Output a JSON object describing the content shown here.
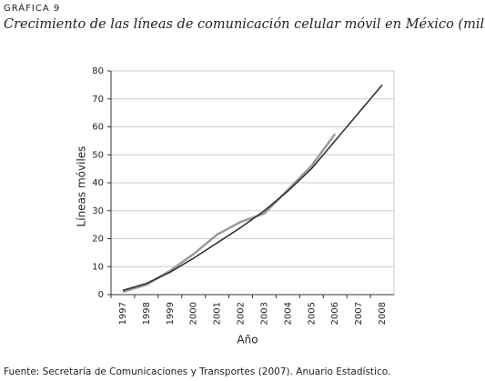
{
  "chart_data": {
    "type": "line",
    "label": "GRÁFICA 9",
    "title": "Crecimiento de las líneas de comunicación celular móvil en México (millones)",
    "x_label": "Año",
    "y_label": "Líneas móviles",
    "source": "Fuente: Secretaría de Comunicaciones y Transportes (2007). Anuario Estadístico.",
    "categories": [
      "1997",
      "1998",
      "1999",
      "2000",
      "2001",
      "2002",
      "2003",
      "2004",
      "2005",
      "2006",
      "2007",
      "2008"
    ],
    "series": [
      {
        "color": "#2a2a2a",
        "values": [
          1.5,
          4,
          8,
          13,
          18.5,
          24,
          30,
          37,
          45,
          55,
          65,
          75
        ]
      },
      {
        "color": "#9a9a9a",
        "values": [
          1,
          3.5,
          8.5,
          14.5,
          21.5,
          26,
          29,
          37.5,
          46,
          57.5,
          null,
          null
        ]
      }
    ],
    "ylim": [
      0,
      80
    ],
    "yticks": [
      0,
      10,
      20,
      30,
      40,
      50,
      60,
      70,
      80
    ],
    "grid": true
  }
}
